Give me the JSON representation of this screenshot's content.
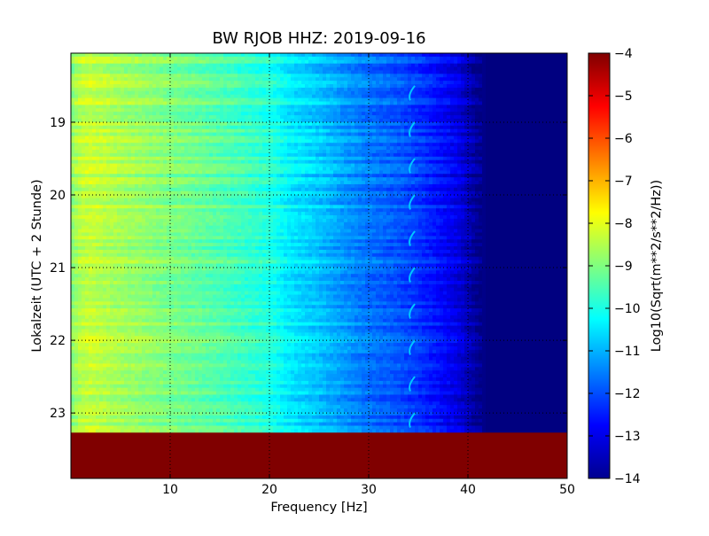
{
  "chart_data": {
    "type": "heatmap",
    "title": "BW RJOB HHZ: 2019-09-16",
    "xlabel": "Frequency [Hz]",
    "ylabel": "Lokalzeit (UTC + 2 Stunde)",
    "xlim": [
      0,
      50
    ],
    "ylim": [
      18.05,
      23.9
    ],
    "y_inverted": true,
    "x_ticks": [
      10,
      20,
      30,
      40,
      50
    ],
    "x_tick_labels": [
      "10",
      "20",
      "30",
      "40",
      "50"
    ],
    "y_ticks": [
      19,
      20,
      21,
      22,
      23
    ],
    "y_tick_labels": [
      "19",
      "20",
      "21",
      "22",
      "23"
    ],
    "grid": true,
    "colormap": "jet",
    "colorbar": {
      "label": "Log10(Sqrt(m**2/s**2/Hz))",
      "range": [
        -14,
        -4
      ],
      "ticks": [
        -4,
        -5,
        -6,
        -7,
        -8,
        -9,
        -10,
        -11,
        -12,
        -13,
        -14
      ],
      "tick_labels": [
        "−4",
        "−5",
        "−6",
        "−7",
        "−8",
        "−9",
        "−10",
        "−11",
        "−12",
        "−13",
        "−14"
      ]
    },
    "data_end_time": 23.27,
    "no_data_fill_value": -4,
    "spectrum_profile": {
      "frequency_hz": [
        0,
        1,
        2,
        5,
        10,
        15,
        18,
        20,
        22,
        25,
        28,
        30,
        33,
        35,
        37,
        39,
        40,
        41,
        42,
        45,
        50
      ],
      "log10_amplitude": [
        -8.9,
        -8.4,
        -8.3,
        -8.6,
        -9.0,
        -9.4,
        -9.7,
        -9.9,
        -10.4,
        -10.8,
        -11.3,
        -11.6,
        -11.9,
        -12.2,
        -12.6,
        -13.0,
        -13.4,
        -13.8,
        -14.0,
        -14.0,
        -14.0
      ]
    },
    "tonal_line": {
      "frequency_hz": 34.3,
      "log10_amplitude": -10.8
    }
  }
}
